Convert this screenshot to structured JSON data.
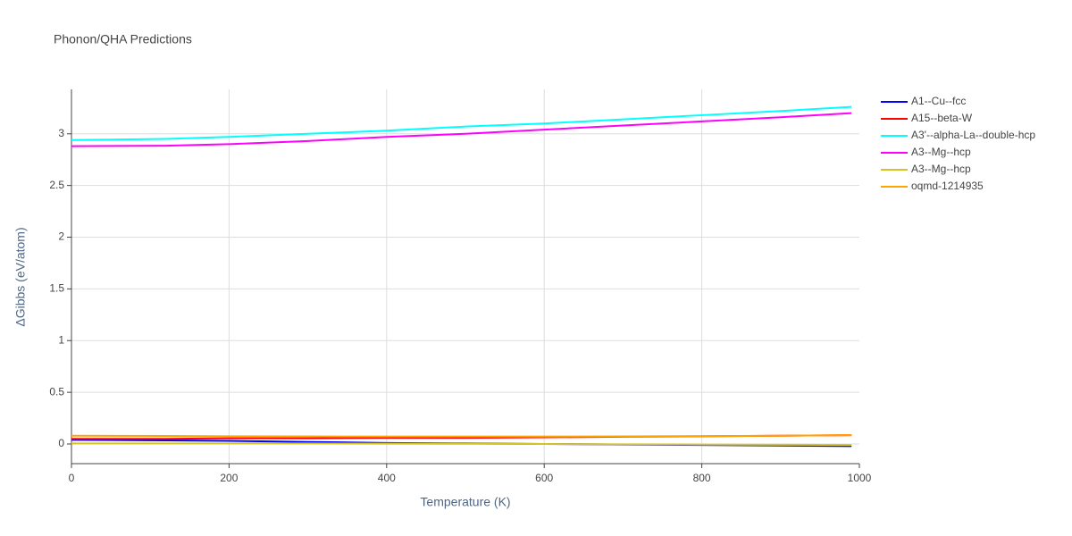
{
  "chart_data": {
    "type": "line",
    "title": "Phonon/QHA Predictions",
    "x_label": "Temperature (K)",
    "y_label": "ΔGibbs (eV/atom)",
    "x": [
      0,
      120,
      200,
      300,
      400,
      500,
      600,
      700,
      800,
      900,
      990
    ],
    "series": [
      {
        "name": "A1--Cu--fcc",
        "color": "#0000ff",
        "values": [
          0.04,
          0.035,
          0.03,
          0.02,
          0.01,
          0.005,
          0,
          -0.005,
          -0.01,
          -0.015,
          -0.02
        ]
      },
      {
        "name": "A15--beta-W",
        "color": "#ff0000",
        "values": [
          0.05,
          0.05,
          0.055,
          0.055,
          0.06,
          0.06,
          0.065,
          0.07,
          0.075,
          0.08,
          0.085
        ]
      },
      {
        "name": "A3'--alpha-La--double-hcp",
        "color": "#00ffff",
        "values": [
          2.94,
          2.95,
          2.97,
          3.0,
          3.03,
          3.07,
          3.1,
          3.14,
          3.18,
          3.22,
          3.26
        ]
      },
      {
        "name": "A3--Mg--hcp",
        "color": "#ff00ff",
        "values": [
          2.88,
          2.885,
          2.9,
          2.93,
          2.97,
          3.0,
          3.04,
          3.08,
          3.12,
          3.16,
          3.2
        ]
      },
      {
        "name": "A3--Mg--hcp",
        "color": "#d4c424",
        "values": [
          0.005,
          0.005,
          0.005,
          0.005,
          0.003,
          0.002,
          0,
          -0.003,
          -0.005,
          -0.007,
          -0.01
        ]
      },
      {
        "name": "oqmd-1214935",
        "color": "#ffa500",
        "values": [
          0.08,
          0.078,
          0.075,
          0.073,
          0.072,
          0.072,
          0.072,
          0.074,
          0.076,
          0.08,
          0.085
        ]
      }
    ],
    "xlim": [
      0,
      1000
    ],
    "xticks": [
      0,
      200,
      400,
      600,
      800,
      1000
    ],
    "ylim": [
      -0.19,
      3.43
    ],
    "yticks": [
      0,
      0.5,
      1,
      1.5,
      2,
      2.5,
      3
    ],
    "grid": true
  }
}
